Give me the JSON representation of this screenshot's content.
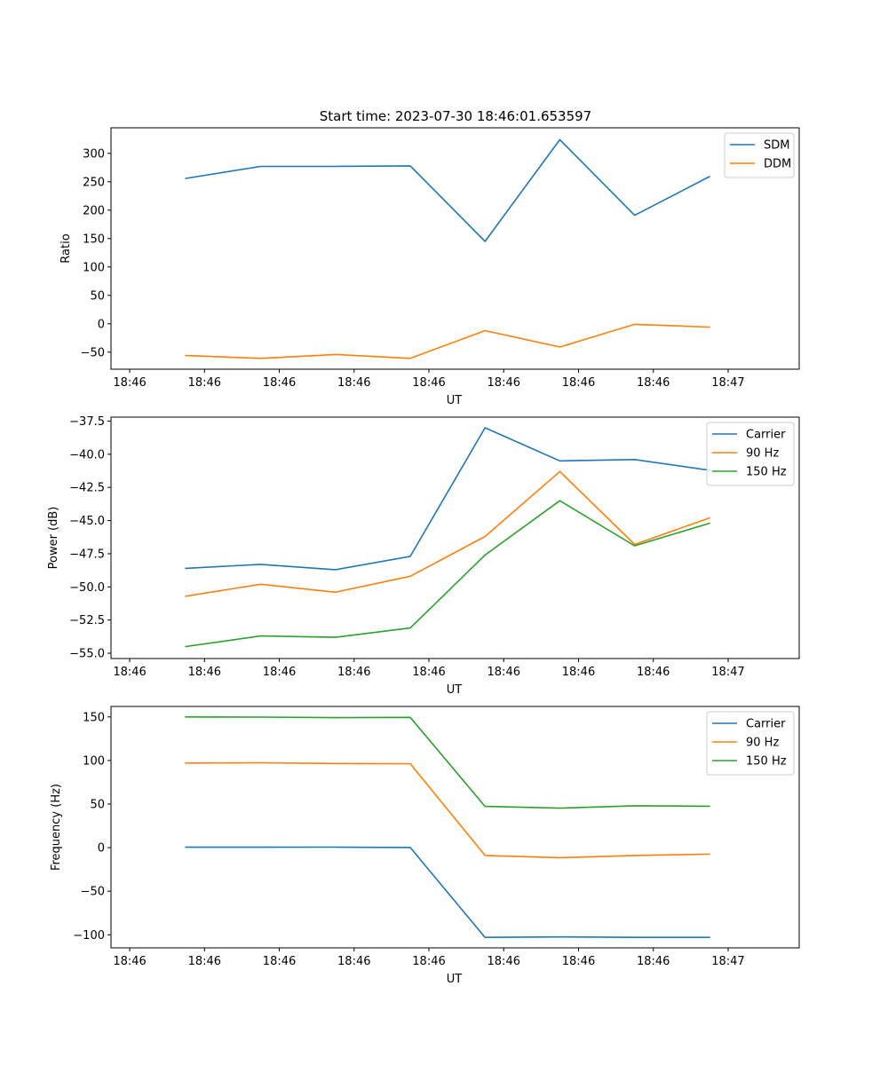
{
  "figure": {
    "title": "Start time: 2023-07-30 18:46:01.653597"
  },
  "colors": {
    "blue": "#1f77b4",
    "orange": "#ff7f0e",
    "green": "#2ca02c"
  },
  "chart_data": [
    {
      "type": "line",
      "xlabel": "UT",
      "ylabel": "Ratio",
      "xlim": [
        0,
        9.2
      ],
      "ylim": [
        -80,
        345
      ],
      "xticks": [
        0.25,
        1.25,
        2.25,
        3.25,
        4.25,
        5.25,
        6.25,
        7.25,
        8.25
      ],
      "xtick_labels": [
        "18:46",
        "18:46",
        "18:46",
        "18:46",
        "18:46",
        "18:46",
        "18:46",
        "18:46",
        "18:47"
      ],
      "yticks": [
        -50,
        0,
        50,
        100,
        150,
        200,
        250,
        300
      ],
      "ytick_labels": [
        "−50",
        "0",
        "50",
        "100",
        "150",
        "200",
        "250",
        "300"
      ],
      "legend": "upper right",
      "x": [
        1,
        2,
        3,
        4,
        5,
        6,
        7,
        8
      ],
      "series": [
        {
          "name": "SDM",
          "color": "#1f77b4",
          "values": [
            256,
            277,
            277,
            278,
            145,
            324,
            191,
            259
          ]
        },
        {
          "name": "DDM",
          "color": "#ff7f0e",
          "values": [
            -56,
            -61,
            -54,
            -61,
            -12,
            -41,
            -1,
            -6
          ]
        }
      ]
    },
    {
      "type": "line",
      "xlabel": "UT",
      "ylabel": "Power (dB)",
      "xlim": [
        0,
        9.2
      ],
      "ylim": [
        -55.4,
        -37.2
      ],
      "xticks": [
        0.25,
        1.25,
        2.25,
        3.25,
        4.25,
        5.25,
        6.25,
        7.25,
        8.25
      ],
      "xtick_labels": [
        "18:46",
        "18:46",
        "18:46",
        "18:46",
        "18:46",
        "18:46",
        "18:46",
        "18:46",
        "18:47"
      ],
      "yticks": [
        -55.0,
        -52.5,
        -50.0,
        -47.5,
        -45.0,
        -42.5,
        -40.0,
        -37.5
      ],
      "ytick_labels": [
        "−55.0",
        "−52.5",
        "−50.0",
        "−47.5",
        "−45.0",
        "−42.5",
        "−40.0",
        "−37.5"
      ],
      "legend": "upper right",
      "x": [
        1,
        2,
        3,
        4,
        5,
        6,
        7,
        8
      ],
      "series": [
        {
          "name": "Carrier",
          "color": "#1f77b4",
          "values": [
            -48.6,
            -48.3,
            -48.7,
            -47.7,
            -38.0,
            -40.5,
            -40.4,
            -41.2
          ]
        },
        {
          "name": "90 Hz",
          "color": "#ff7f0e",
          "values": [
            -50.7,
            -49.8,
            -50.4,
            -49.2,
            -46.2,
            -41.3,
            -46.8,
            -44.8
          ]
        },
        {
          "name": "150 Hz",
          "color": "#2ca02c",
          "values": [
            -54.5,
            -53.7,
            -53.8,
            -53.1,
            -47.6,
            -43.5,
            -46.9,
            -45.2
          ]
        }
      ]
    },
    {
      "type": "line",
      "xlabel": "UT",
      "ylabel": "Frequency (Hz)",
      "xlim": [
        0,
        9.2
      ],
      "ylim": [
        -115,
        162
      ],
      "xticks": [
        0.25,
        1.25,
        2.25,
        3.25,
        4.25,
        5.25,
        6.25,
        7.25,
        8.25
      ],
      "xtick_labels": [
        "18:46",
        "18:46",
        "18:46",
        "18:46",
        "18:46",
        "18:46",
        "18:46",
        "18:46",
        "18:47"
      ],
      "yticks": [
        -100,
        -50,
        0,
        50,
        100,
        150
      ],
      "ytick_labels": [
        "−100",
        "−50",
        "0",
        "50",
        "100",
        "150"
      ],
      "legend": "upper right",
      "x": [
        1,
        2,
        3,
        4,
        5,
        6,
        7,
        8
      ],
      "series": [
        {
          "name": "Carrier",
          "color": "#1f77b4",
          "values": [
            0.5,
            0.5,
            0.6,
            0.2,
            -103,
            -102.5,
            -103,
            -103
          ]
        },
        {
          "name": "90 Hz",
          "color": "#ff7f0e",
          "values": [
            97,
            97.3,
            96.5,
            96.3,
            -9,
            -11.5,
            -9,
            -7.5
          ]
        },
        {
          "name": "150 Hz",
          "color": "#2ca02c",
          "values": [
            150,
            149.8,
            149.2,
            149.5,
            47.3,
            45.3,
            48,
            47.5
          ]
        }
      ]
    }
  ]
}
